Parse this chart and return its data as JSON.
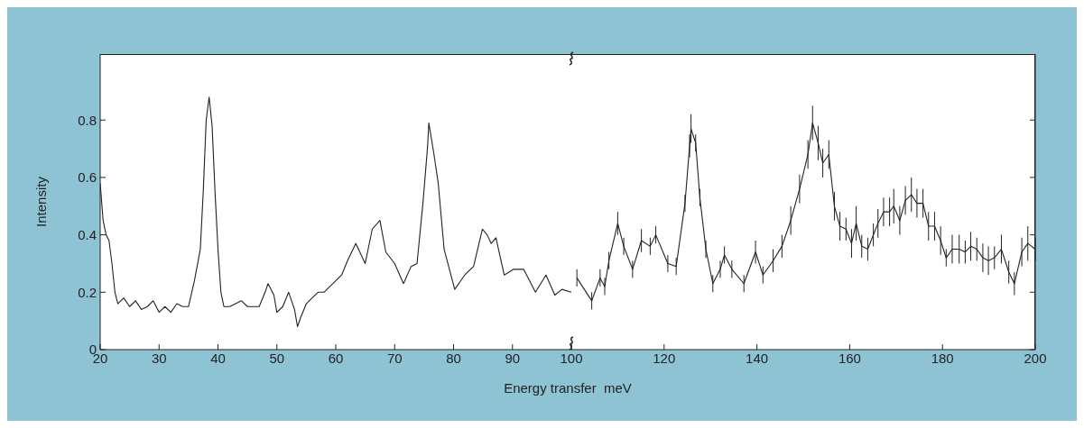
{
  "chart_data": [
    {
      "type": "line",
      "ylabel": "Intensity",
      "xlabel": "Energy transfer  meV",
      "xlim": [
        20,
        100
      ],
      "xticks": [
        20,
        30,
        40,
        50,
        60,
        70,
        80,
        90,
        100
      ],
      "ylim": [
        0,
        1.03
      ],
      "yticks": [
        0,
        0.2,
        0.4,
        0.6,
        0.8
      ],
      "color": "#222222",
      "marker": "none",
      "x": [
        20,
        20.5,
        21,
        21.5,
        22,
        22.5,
        23,
        24,
        25,
        26,
        27,
        28,
        29,
        30,
        31,
        32,
        33,
        34,
        35,
        36,
        37,
        37.5,
        38,
        38.5,
        39,
        39.5,
        40,
        40.5,
        41,
        42,
        43,
        44,
        45,
        46,
        47,
        48,
        48.5,
        49.5,
        50,
        51,
        52,
        53,
        53.5,
        54,
        55,
        56,
        57,
        58,
        59,
        60,
        61,
        62,
        63.4,
        65,
        66.2,
        67.5,
        68.5,
        70,
        71.5,
        72.8,
        73.8,
        74.8,
        75.6,
        75.8,
        76.6,
        77.4,
        78.4,
        80.2,
        81.9,
        83.4,
        84.9,
        85.7,
        86.4,
        87.2,
        88.6,
        90.2,
        91.9,
        93.9,
        95.7,
        97.2,
        98.4,
        100
      ],
      "values": [
        0.58,
        0.45,
        0.4,
        0.38,
        0.3,
        0.2,
        0.16,
        0.18,
        0.15,
        0.17,
        0.14,
        0.15,
        0.17,
        0.13,
        0.15,
        0.13,
        0.16,
        0.15,
        0.15,
        0.24,
        0.35,
        0.55,
        0.8,
        0.88,
        0.78,
        0.55,
        0.35,
        0.2,
        0.15,
        0.15,
        0.16,
        0.17,
        0.15,
        0.15,
        0.15,
        0.2,
        0.23,
        0.19,
        0.13,
        0.15,
        0.2,
        0.14,
        0.08,
        0.11,
        0.16,
        0.18,
        0.2,
        0.2,
        0.22,
        0.24,
        0.26,
        0.31,
        0.37,
        0.3,
        0.42,
        0.45,
        0.34,
        0.3,
        0.23,
        0.29,
        0.3,
        0.51,
        0.71,
        0.79,
        0.69,
        0.58,
        0.35,
        0.21,
        0.26,
        0.29,
        0.42,
        0.4,
        0.37,
        0.39,
        0.26,
        0.28,
        0.28,
        0.2,
        0.26,
        0.19,
        0.21,
        0.2
      ]
    },
    {
      "type": "line",
      "xlim": [
        100,
        200
      ],
      "xticks": [
        {
          "value": 100,
          "label": null
        },
        120,
        140,
        160,
        180,
        200
      ],
      "ylim": [
        0,
        1.03
      ],
      "yticks": [
        0,
        0.2,
        0.4,
        0.6,
        0.8
      ],
      "tick_labels": "x",
      "color": "#222222",
      "marker": "none",
      "x": [
        101.2,
        104.4,
        106.2,
        107.2,
        108.1,
        110,
        111.3,
        113.2,
        115.1,
        117,
        118.2,
        120.8,
        122.6,
        124.5,
        125.5,
        125.8,
        126.8,
        127.7,
        129,
        130.5,
        132.1,
        133,
        134.6,
        137.2,
        139.7,
        141.3,
        143.5,
        145.4,
        147.3,
        149.2,
        151,
        152,
        153.2,
        154.2,
        155.5,
        156.7,
        157.9,
        159.2,
        160.4,
        161.4,
        162.6,
        163.9,
        165.1,
        166.1,
        167.3,
        168.6,
        169.5,
        170.8,
        172,
        173.3,
        174.5,
        175.8,
        177,
        178.3,
        179.6,
        180.8,
        182.1,
        183.6,
        184.9,
        186.1,
        187.4,
        188.7,
        189.9,
        191.2,
        192.7,
        194.3,
        195.5,
        197.1,
        198.4,
        200
      ],
      "values": [
        0.25,
        0.17,
        0.25,
        0.22,
        0.31,
        0.44,
        0.36,
        0.28,
        0.38,
        0.36,
        0.4,
        0.3,
        0.29,
        0.51,
        0.71,
        0.77,
        0.72,
        0.53,
        0.35,
        0.23,
        0.28,
        0.33,
        0.28,
        0.23,
        0.34,
        0.26,
        0.31,
        0.36,
        0.45,
        0.56,
        0.68,
        0.79,
        0.72,
        0.65,
        0.68,
        0.5,
        0.43,
        0.42,
        0.37,
        0.44,
        0.36,
        0.35,
        0.4,
        0.44,
        0.48,
        0.48,
        0.5,
        0.45,
        0.52,
        0.54,
        0.51,
        0.51,
        0.43,
        0.43,
        0.38,
        0.32,
        0.35,
        0.35,
        0.34,
        0.36,
        0.35,
        0.32,
        0.31,
        0.32,
        0.35,
        0.27,
        0.23,
        0.34,
        0.37,
        0.35
      ],
      "errors": [
        0.03,
        0.03,
        0.03,
        0.03,
        0.03,
        0.04,
        0.03,
        0.03,
        0.04,
        0.03,
        0.03,
        0.03,
        0.03,
        0.03,
        0.04,
        0.05,
        0.03,
        0.03,
        0.03,
        0.03,
        0.03,
        0.03,
        0.03,
        0.03,
        0.04,
        0.03,
        0.04,
        0.04,
        0.05,
        0.05,
        0.05,
        0.06,
        0.06,
        0.05,
        0.05,
        0.05,
        0.05,
        0.04,
        0.05,
        0.06,
        0.04,
        0.04,
        0.04,
        0.05,
        0.05,
        0.05,
        0.06,
        0.05,
        0.05,
        0.06,
        0.05,
        0.05,
        0.05,
        0.05,
        0.05,
        0.03,
        0.05,
        0.05,
        0.04,
        0.05,
        0.04,
        0.05,
        0.05,
        0.04,
        0.05,
        0.04,
        0.04,
        0.05,
        0.06,
        0.04
      ]
    }
  ]
}
